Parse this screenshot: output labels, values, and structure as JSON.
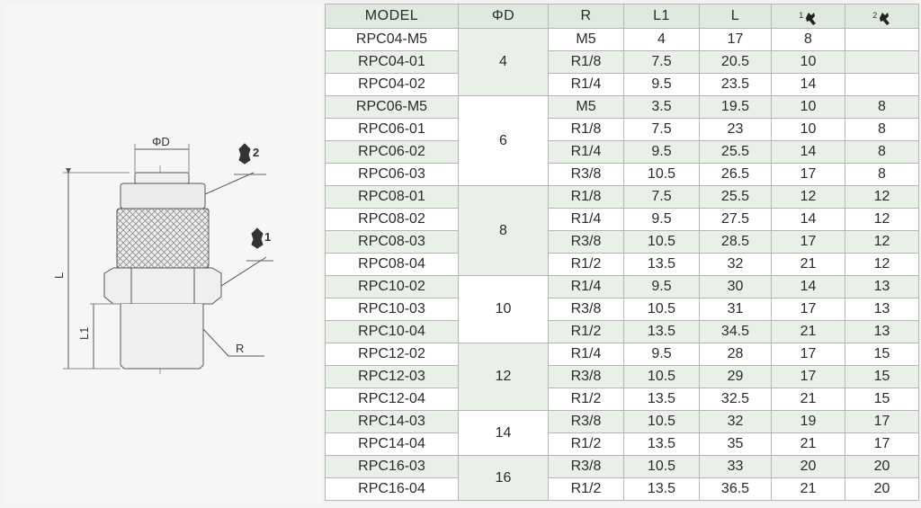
{
  "drawing": {
    "dim_pd": "ΦD",
    "dim_l": "L",
    "dim_l1": "L1",
    "dim_r": "R",
    "wrench_1": "1",
    "wrench_2": "2"
  },
  "table": {
    "headers": {
      "model": "MODEL",
      "pd": "ΦD",
      "r": "R",
      "l1": "L1",
      "l": "L",
      "wrench1_sup": "1",
      "wrench2_sup": "2",
      "wrench_icon": "wrench-icon"
    },
    "groups": [
      {
        "pd": "4",
        "rows": [
          {
            "model": "RPC04-M5",
            "r": "M5",
            "l1": "4",
            "l": "17",
            "w1": "8",
            "w2": ""
          },
          {
            "model": "RPC04-01",
            "r": "R1/8",
            "l1": "7.5",
            "l": "20.5",
            "w1": "10",
            "w2": ""
          },
          {
            "model": "RPC04-02",
            "r": "R1/4",
            "l1": "9.5",
            "l": "23.5",
            "w1": "14",
            "w2": ""
          }
        ]
      },
      {
        "pd": "6",
        "rows": [
          {
            "model": "RPC06-M5",
            "r": "M5",
            "l1": "3.5",
            "l": "19.5",
            "w1": "10",
            "w2": "8"
          },
          {
            "model": "RPC06-01",
            "r": "R1/8",
            "l1": "7.5",
            "l": "23",
            "w1": "10",
            "w2": "8"
          },
          {
            "model": "RPC06-02",
            "r": "R1/4",
            "l1": "9.5",
            "l": "25.5",
            "w1": "14",
            "w2": "8"
          },
          {
            "model": "RPC06-03",
            "r": "R3/8",
            "l1": "10.5",
            "l": "26.5",
            "w1": "17",
            "w2": "8"
          }
        ]
      },
      {
        "pd": "8",
        "rows": [
          {
            "model": "RPC08-01",
            "r": "R1/8",
            "l1": "7.5",
            "l": "25.5",
            "w1": "12",
            "w2": "12"
          },
          {
            "model": "RPC08-02",
            "r": "R1/4",
            "l1": "9.5",
            "l": "27.5",
            "w1": "14",
            "w2": "12"
          },
          {
            "model": "RPC08-03",
            "r": "R3/8",
            "l1": "10.5",
            "l": "28.5",
            "w1": "17",
            "w2": "12"
          },
          {
            "model": "RPC08-04",
            "r": "R1/2",
            "l1": "13.5",
            "l": "32",
            "w1": "21",
            "w2": "12"
          }
        ]
      },
      {
        "pd": "10",
        "rows": [
          {
            "model": "RPC10-02",
            "r": "R1/4",
            "l1": "9.5",
            "l": "30",
            "w1": "14",
            "w2": "13"
          },
          {
            "model": "RPC10-03",
            "r": "R3/8",
            "l1": "10.5",
            "l": "31",
            "w1": "17",
            "w2": "13"
          },
          {
            "model": "RPC10-04",
            "r": "R1/2",
            "l1": "13.5",
            "l": "34.5",
            "w1": "21",
            "w2": "13"
          }
        ]
      },
      {
        "pd": "12",
        "rows": [
          {
            "model": "RPC12-02",
            "r": "R1/4",
            "l1": "9.5",
            "l": "28",
            "w1": "17",
            "w2": "15"
          },
          {
            "model": "RPC12-03",
            "r": "R3/8",
            "l1": "10.5",
            "l": "29",
            "w1": "17",
            "w2": "15"
          },
          {
            "model": "RPC12-04",
            "r": "R1/2",
            "l1": "13.5",
            "l": "32.5",
            "w1": "21",
            "w2": "15"
          }
        ]
      },
      {
        "pd": "14",
        "rows": [
          {
            "model": "RPC14-03",
            "r": "R3/8",
            "l1": "10.5",
            "l": "32",
            "w1": "19",
            "w2": "17"
          },
          {
            "model": "RPC14-04",
            "r": "R1/2",
            "l1": "13.5",
            "l": "35",
            "w1": "21",
            "w2": "17"
          }
        ]
      },
      {
        "pd": "16",
        "rows": [
          {
            "model": "RPC16-03",
            "r": "R3/8",
            "l1": "10.5",
            "l": "33",
            "w1": "20",
            "w2": "20"
          },
          {
            "model": "RPC16-04",
            "r": "R1/2",
            "l1": "13.5",
            "l": "36.5",
            "w1": "21",
            "w2": "20"
          }
        ]
      }
    ]
  }
}
